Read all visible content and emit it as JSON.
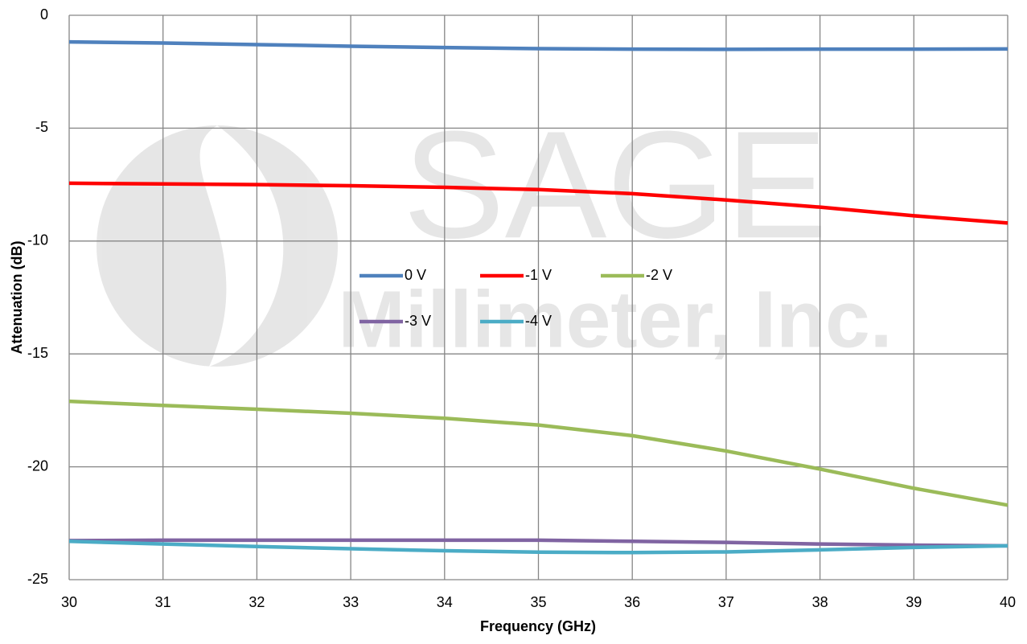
{
  "chart_data": {
    "type": "line",
    "x_label": "Frequency (GHz)",
    "y_label": "Attenuation (dB)",
    "watermark": [
      "SAGE",
      "Millimeter, Inc."
    ],
    "x": [
      30,
      31,
      32,
      33,
      34,
      35,
      36,
      37,
      38,
      39,
      40
    ],
    "xlim": [
      30,
      40
    ],
    "xticks": [
      30,
      31,
      32,
      33,
      34,
      35,
      36,
      37,
      38,
      39,
      40
    ],
    "ylim": [
      -25,
      0
    ],
    "yticks": [
      -25,
      -20,
      -15,
      -10,
      -5,
      0
    ],
    "grid": true,
    "legend": "center",
    "series": [
      {
        "name": "0 V",
        "color": "#4f81bd",
        "values": [
          -1.18,
          -1.23,
          -1.3,
          -1.37,
          -1.43,
          -1.48,
          -1.5,
          -1.51,
          -1.5,
          -1.5,
          -1.49
        ]
      },
      {
        "name": "-1 V",
        "color": "#ff0000",
        "values": [
          -7.44,
          -7.47,
          -7.5,
          -7.55,
          -7.62,
          -7.72,
          -7.9,
          -8.18,
          -8.5,
          -8.88,
          -9.2
        ]
      },
      {
        "name": "-2 V",
        "color": "#9bbb59",
        "values": [
          -17.1,
          -17.28,
          -17.45,
          -17.63,
          -17.85,
          -18.15,
          -18.62,
          -19.3,
          -20.1,
          -20.95,
          -21.7
        ]
      },
      {
        "name": "-3 V",
        "color": "#8064a2",
        "values": [
          -23.27,
          -23.25,
          -23.25,
          -23.25,
          -23.25,
          -23.25,
          -23.3,
          -23.35,
          -23.42,
          -23.47,
          -23.5
        ]
      },
      {
        "name": "-4 V",
        "color": "#4bacc6",
        "values": [
          -23.3,
          -23.42,
          -23.53,
          -23.63,
          -23.72,
          -23.78,
          -23.8,
          -23.77,
          -23.68,
          -23.57,
          -23.5
        ]
      }
    ]
  }
}
